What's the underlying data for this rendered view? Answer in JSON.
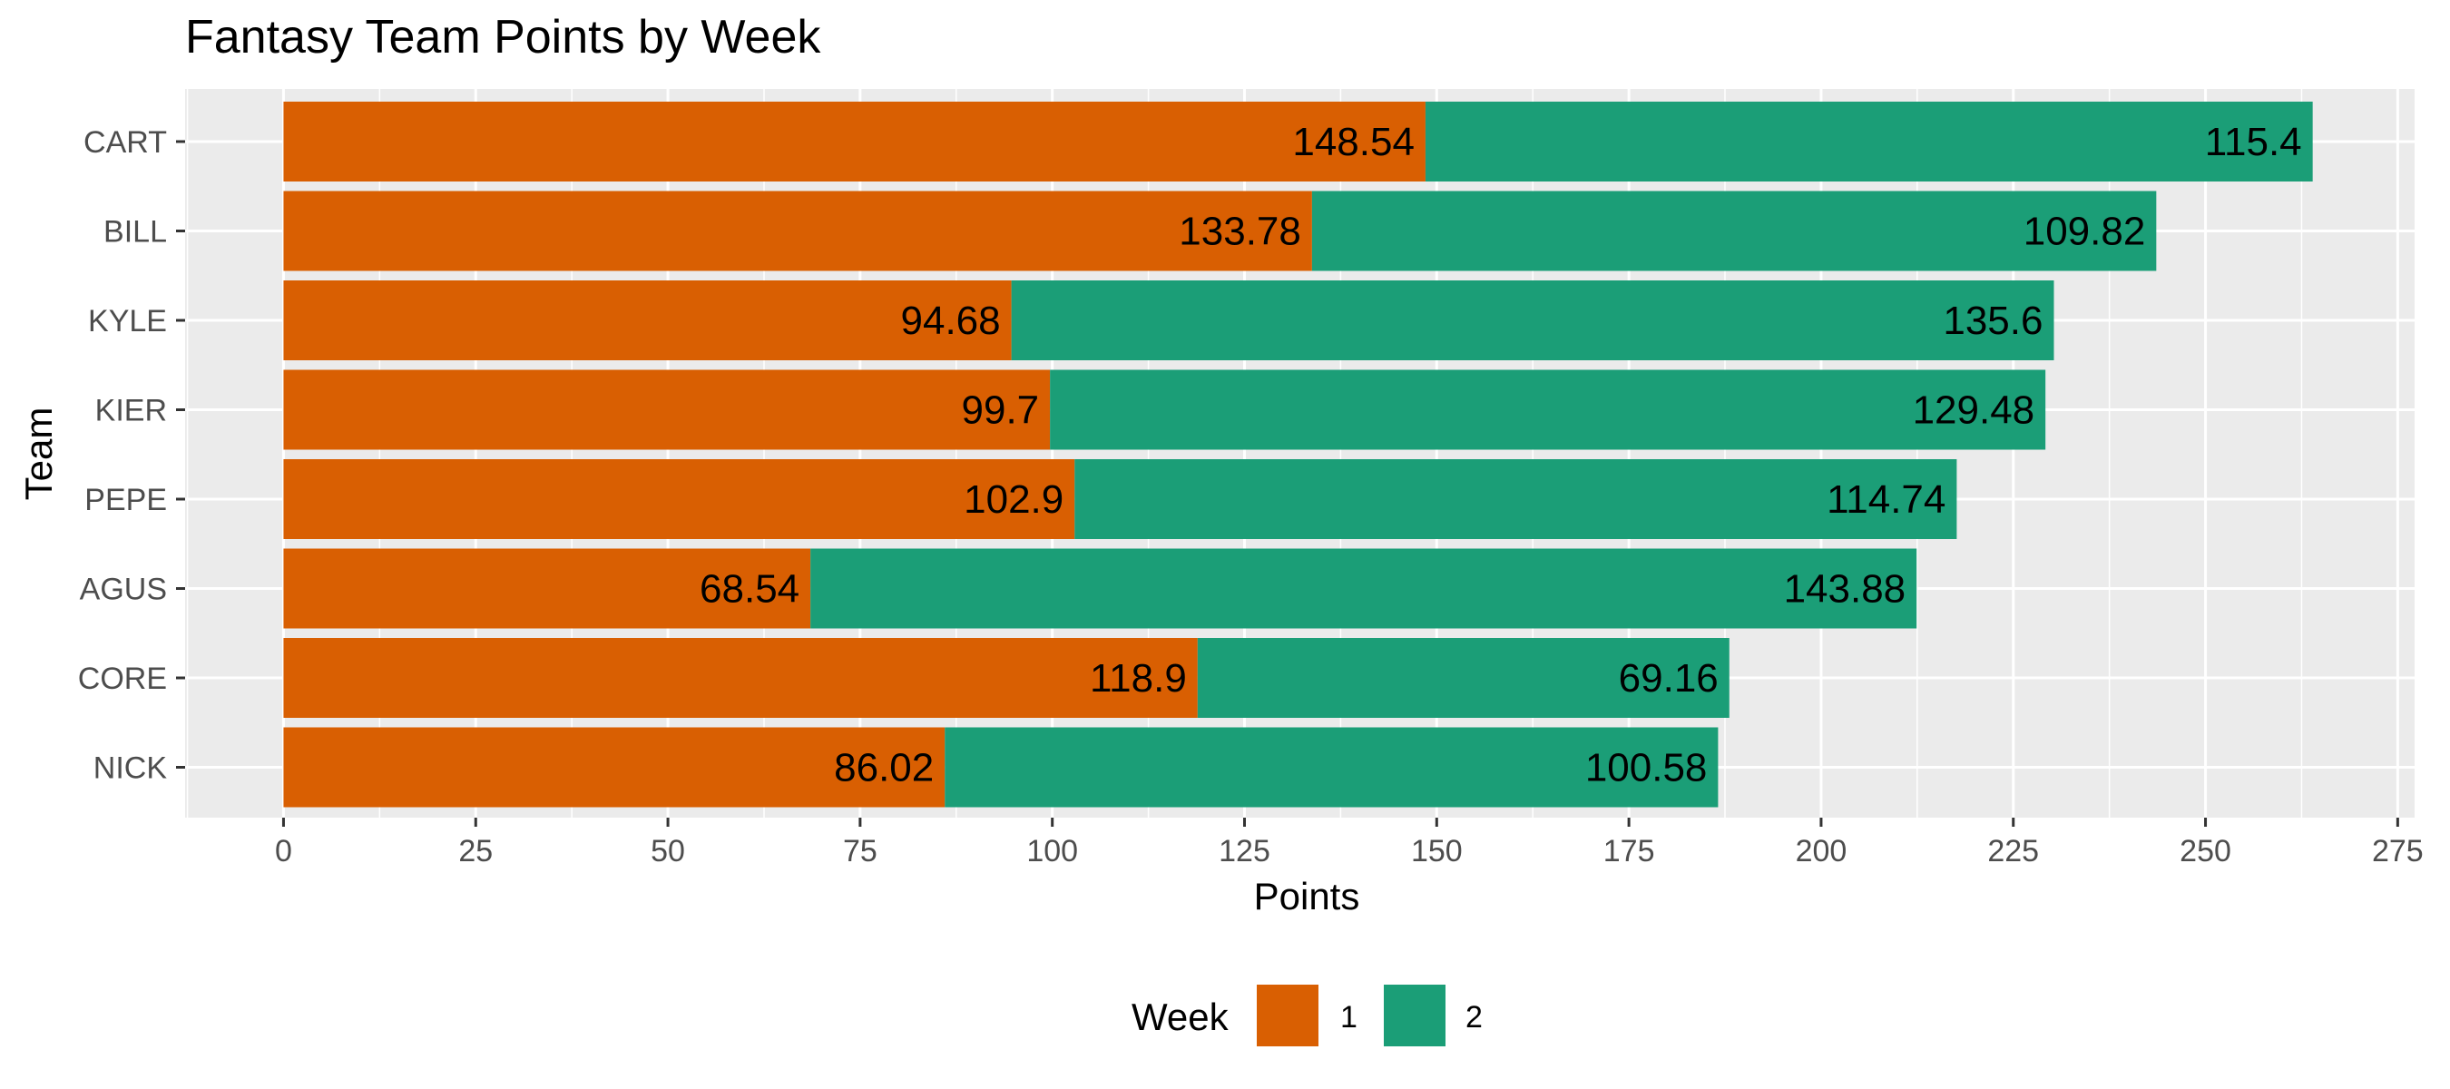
{
  "chart_data": {
    "type": "bar",
    "orientation": "horizontal",
    "stacked": true,
    "title": "Fantasy Team Points by Week",
    "xlabel": "Points",
    "ylabel": "Team",
    "xlim": [
      -12.8,
      277.2
    ],
    "x_ticks": [
      0,
      25,
      50,
      75,
      100,
      125,
      150,
      175,
      200,
      225,
      250,
      275
    ],
    "grid": true,
    "legend_position": "bottom",
    "legend_title": "Week",
    "categories": [
      "CART",
      "BILL",
      "KYLE",
      "KIER",
      "PEPE",
      "AGUS",
      "CORE",
      "NICK"
    ],
    "series": [
      {
        "name": "1",
        "color": "#d95f02",
        "values": [
          148.54,
          133.78,
          94.68,
          99.7,
          102.9,
          68.54,
          118.9,
          86.02
        ]
      },
      {
        "name": "2",
        "color": "#1b9e77",
        "values": [
          115.4,
          109.82,
          135.6,
          129.48,
          114.74,
          143.88,
          69.16,
          100.58
        ]
      }
    ],
    "panel_background": "#ebebeb",
    "grid_color": "#ffffff"
  }
}
